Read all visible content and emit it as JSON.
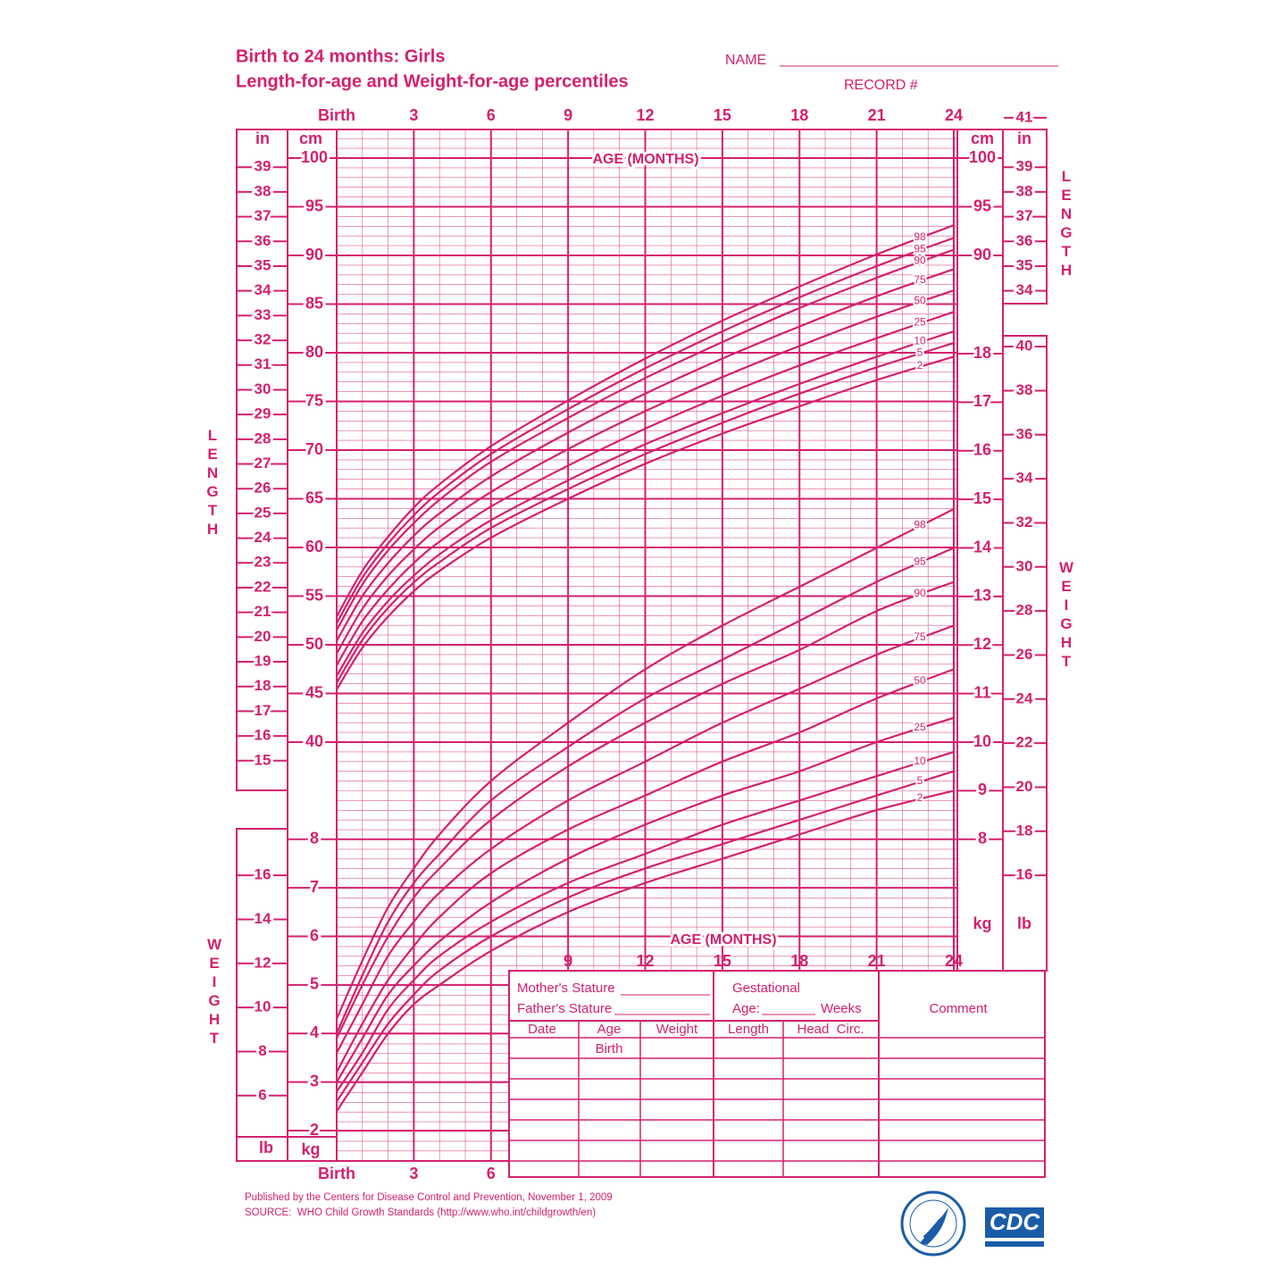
{
  "header": {
    "title": "Birth to 24 months: Girls",
    "subtitle": "Length-for-age and Weight-for-age percentiles",
    "name_label": "NAME",
    "record_label": "RECORD #"
  },
  "chart_data": [
    {
      "type": "line",
      "ylabel": "LENGTH",
      "xlabel": "AGE (MONTHS)",
      "y_unit": "cm",
      "y2_unit": "in",
      "x": [
        0,
        1,
        2,
        3,
        4,
        6,
        9,
        12,
        15,
        18,
        21,
        24
      ],
      "xlim": [
        0,
        24
      ],
      "xticks": [
        {
          "value": 0,
          "label": "Birth"
        },
        3,
        6,
        9,
        12,
        15,
        18,
        21,
        24
      ],
      "ylim": [
        40,
        100
      ],
      "yticks": [
        40,
        45,
        50,
        55,
        60,
        65,
        70,
        75,
        80,
        85,
        90,
        95,
        100
      ],
      "yticks_right": [
        90,
        95,
        100
      ],
      "y2lim": [
        15.75,
        39.37
      ],
      "y2ticks": [
        15,
        16,
        17,
        18,
        19,
        20,
        21,
        22,
        23,
        24,
        25,
        26,
        27,
        28,
        29,
        30,
        31,
        32,
        33,
        34,
        35,
        36,
        37,
        38,
        39
      ],
      "y2ticks_right": [
        34,
        35,
        36,
        37,
        38,
        39,
        41
      ],
      "grid": true,
      "series": [
        {
          "name": "2",
          "color": "#d4206e",
          "values": [
            45.4,
            49.7,
            52.9,
            55.5,
            57.6,
            61.0,
            65.0,
            68.6,
            71.7,
            74.5,
            77.2,
            79.6
          ]
        },
        {
          "name": "5",
          "color": "#d4206e",
          "values": [
            46.1,
            50.5,
            53.8,
            56.4,
            58.5,
            62.0,
            66.0,
            69.6,
            72.8,
            75.8,
            78.5,
            81.0
          ]
        },
        {
          "name": "10",
          "color": "#d4206e",
          "values": [
            46.8,
            51.2,
            54.5,
            57.1,
            59.3,
            62.8,
            66.9,
            70.6,
            73.8,
            76.8,
            79.6,
            82.2
          ]
        },
        {
          "name": "25",
          "color": "#d4206e",
          "values": [
            47.9,
            52.4,
            55.7,
            58.4,
            60.6,
            64.2,
            68.4,
            72.2,
            75.6,
            78.7,
            81.5,
            84.2
          ]
        },
        {
          "name": "50",
          "color": "#d4206e",
          "values": [
            49.1,
            53.7,
            57.1,
            59.8,
            62.1,
            65.7,
            70.1,
            74.0,
            77.5,
            80.7,
            83.7,
            86.4
          ]
        },
        {
          "name": "75",
          "color": "#d4206e",
          "values": [
            50.4,
            55.0,
            58.4,
            61.2,
            63.5,
            67.3,
            71.8,
            75.8,
            79.4,
            82.7,
            85.8,
            88.6
          ]
        },
        {
          "name": "90",
          "color": "#d4206e",
          "values": [
            51.5,
            56.2,
            59.7,
            62.5,
            64.9,
            68.8,
            73.3,
            77.4,
            81.1,
            84.6,
            87.7,
            90.6
          ]
        },
        {
          "name": "95",
          "color": "#d4206e",
          "values": [
            52.2,
            56.9,
            60.4,
            63.3,
            65.7,
            69.6,
            74.2,
            78.4,
            82.2,
            85.7,
            88.9,
            91.8
          ]
        },
        {
          "name": "98",
          "color": "#d4206e",
          "values": [
            52.9,
            57.6,
            61.1,
            64.1,
            66.5,
            70.4,
            75.1,
            79.4,
            83.3,
            86.8,
            90.1,
            93.1
          ]
        }
      ]
    },
    {
      "type": "line",
      "ylabel": "WEIGHT",
      "xlabel": "AGE (MONTHS)",
      "y_unit": "kg",
      "y2_unit": "lb",
      "x": [
        0,
        1,
        2,
        3,
        4,
        6,
        9,
        12,
        15,
        18,
        21,
        24
      ],
      "xlim": [
        0,
        24
      ],
      "xticks": [
        {
          "value": 0,
          "label": "Birth"
        },
        3,
        6,
        9,
        12,
        15,
        18,
        21,
        24
      ],
      "ylim": [
        2,
        18
      ],
      "yticks": [
        2,
        3,
        4,
        5,
        6,
        7,
        8
      ],
      "yticks_right": [
        8,
        9,
        10,
        11,
        12,
        13,
        14,
        15,
        16,
        17,
        18
      ],
      "y2lim": [
        4.41,
        39.68
      ],
      "y2ticks": [
        6,
        8,
        10,
        12,
        14,
        16
      ],
      "y2ticks_right": [
        16,
        18,
        20,
        22,
        24,
        26,
        28,
        30,
        32,
        34,
        36,
        38,
        40
      ],
      "grid": true,
      "series": [
        {
          "name": "2",
          "color": "#d4206e",
          "values": [
            2.4,
            3.2,
            4.0,
            4.6,
            5.0,
            5.7,
            6.5,
            7.1,
            7.6,
            8.1,
            8.6,
            9.0
          ]
        },
        {
          "name": "5",
          "color": "#d4206e",
          "values": [
            2.6,
            3.4,
            4.2,
            4.8,
            5.3,
            6.0,
            6.8,
            7.4,
            7.9,
            8.4,
            8.9,
            9.4
          ]
        },
        {
          "name": "10",
          "color": "#d4206e",
          "values": [
            2.8,
            3.6,
            4.5,
            5.1,
            5.6,
            6.3,
            7.1,
            7.7,
            8.3,
            8.8,
            9.3,
            9.8
          ]
        },
        {
          "name": "25",
          "color": "#d4206e",
          "values": [
            3.0,
            3.9,
            4.8,
            5.4,
            5.9,
            6.7,
            7.6,
            8.3,
            8.9,
            9.4,
            10.0,
            10.5
          ]
        },
        {
          "name": "50",
          "color": "#d4206e",
          "values": [
            3.2,
            4.2,
            5.1,
            5.8,
            6.4,
            7.3,
            8.2,
            8.9,
            9.6,
            10.2,
            10.9,
            11.5
          ]
        },
        {
          "name": "75",
          "color": "#d4206e",
          "values": [
            3.6,
            4.6,
            5.6,
            6.3,
            6.9,
            7.8,
            8.8,
            9.6,
            10.4,
            11.1,
            11.8,
            12.4
          ]
        },
        {
          "name": "90",
          "color": "#d4206e",
          "values": [
            3.9,
            5.0,
            6.0,
            6.8,
            7.4,
            8.4,
            9.5,
            10.4,
            11.2,
            11.9,
            12.7,
            13.3
          ]
        },
        {
          "name": "95",
          "color": "#d4206e",
          "values": [
            4.0,
            5.2,
            6.3,
            7.1,
            7.7,
            8.8,
            9.9,
            10.9,
            11.7,
            12.5,
            13.3,
            14.0
          ]
        },
        {
          "name": "98",
          "color": "#d4206e",
          "values": [
            4.3,
            5.5,
            6.6,
            7.4,
            8.1,
            9.2,
            10.4,
            11.5,
            12.4,
            13.2,
            14.0,
            14.8
          ]
        }
      ]
    }
  ],
  "form": {
    "mothers_stature": "Mother's Stature",
    "fathers_stature": "Father's Stature",
    "gestational": "Gestational",
    "age": "Age:",
    "weeks": "Weeks",
    "comment": "Comment",
    "columns": [
      "Date",
      "Age",
      "Weight",
      "Length",
      "Head  Circ."
    ],
    "first_row_age": "Birth"
  },
  "footer": {
    "published": "Published by the Centers for Disease Control and Prevention, November 1, 2009",
    "source": "SOURCE:  WHO Child Growth Standards (http://www.who.int/childgrowth/en)",
    "logo": "CDC"
  }
}
